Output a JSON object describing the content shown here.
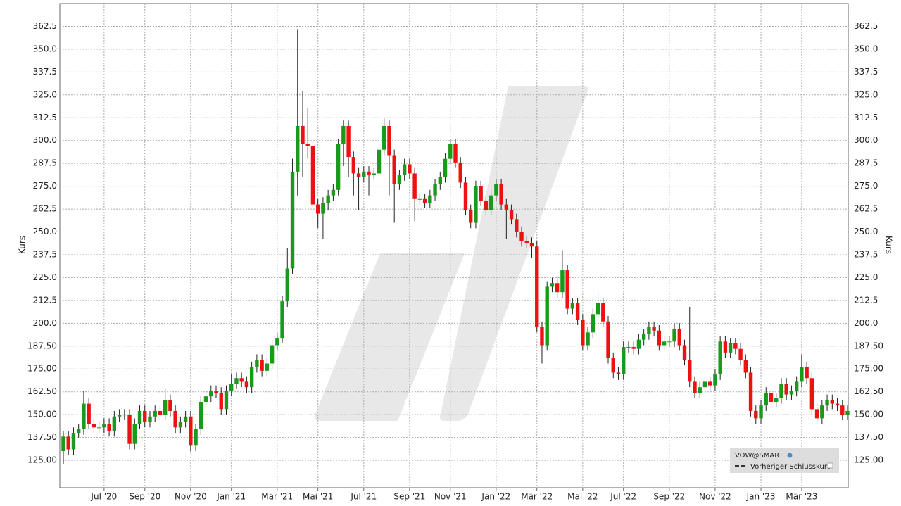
{
  "chart_data": {
    "type": "candlestick",
    "y_label": "Kurs",
    "series_name": "VOW@SMART",
    "reference_name": "Vorheriger Schlusskurs",
    "up_color": "#1a9a1a",
    "down_color": "#ee1111",
    "grid": true,
    "legend": "bottom-right",
    "ylim": [
      110,
      375
    ],
    "yticks": [
      {
        "value": 125,
        "label": "125.00"
      },
      {
        "value": 137.5,
        "label": "137.50"
      },
      {
        "value": 150,
        "label": "150.00"
      },
      {
        "value": 162.5,
        "label": "162.50"
      },
      {
        "value": 175,
        "label": "175.00"
      },
      {
        "value": 187.5,
        "label": "187.50"
      },
      {
        "value": 200,
        "label": "200.0"
      },
      212.5,
      {
        "value": 225,
        "label": "225.0"
      },
      237.5,
      {
        "value": 250,
        "label": "250.0"
      },
      262.5,
      {
        "value": 275,
        "label": "275.0"
      },
      287.5,
      {
        "value": 300,
        "label": "300.0"
      },
      312.5,
      {
        "value": 325,
        "label": "325.0"
      },
      337.5,
      {
        "value": 350,
        "label": "350.0"
      },
      362.5
    ],
    "categories": [
      null,
      null,
      null,
      null,
      null,
      null,
      null,
      null,
      "Jul '20",
      null,
      null,
      null,
      null,
      null,
      null,
      null,
      "Sep '20",
      null,
      null,
      null,
      null,
      null,
      null,
      null,
      null,
      "Nov '20",
      null,
      null,
      null,
      null,
      null,
      null,
      null,
      "Jan '21",
      null,
      null,
      null,
      null,
      null,
      null,
      null,
      null,
      "Mär '21",
      null,
      null,
      null,
      null,
      null,
      null,
      null,
      "Mai '21",
      null,
      null,
      null,
      null,
      null,
      null,
      null,
      null,
      "Jul '21",
      null,
      null,
      null,
      null,
      null,
      null,
      null,
      null,
      "Sep '21",
      null,
      null,
      null,
      null,
      null,
      null,
      null,
      "Nov '21",
      null,
      null,
      null,
      null,
      null,
      null,
      null,
      null,
      "Jan '22",
      null,
      null,
      null,
      null,
      null,
      null,
      null,
      "Mär '22",
      null,
      null,
      null,
      null,
      null,
      null,
      null,
      null,
      "Mai '22",
      null,
      null,
      null,
      null,
      null,
      null,
      null,
      "Jul '22",
      null,
      null,
      null,
      null,
      null,
      null,
      null,
      null,
      "Sep '22",
      null,
      null,
      null,
      null,
      null,
      null,
      null,
      null,
      "Nov '22",
      null,
      null,
      null,
      null,
      null,
      null,
      null,
      null,
      "Jan '23",
      null,
      null,
      null,
      null,
      null,
      null,
      null,
      "Mär '23",
      null,
      null,
      null,
      null,
      null,
      null,
      null,
      null,
      null
    ],
    "open": [
      130,
      138,
      131,
      140,
      142,
      156,
      145,
      143,
      143,
      145,
      141,
      149,
      150,
      150,
      134,
      145,
      152,
      146,
      149,
      152,
      150,
      158,
      152,
      143,
      146,
      149,
      133,
      142,
      157,
      160,
      163,
      162,
      153,
      163,
      167,
      170,
      168,
      165,
      176,
      180,
      174,
      178,
      188,
      192,
      212,
      230,
      283,
      308,
      298,
      297,
      265,
      260,
      266,
      270,
      273,
      298,
      308,
      291,
      282,
      280,
      283,
      281,
      282,
      295,
      308,
      292,
      276,
      281,
      287,
      282,
      268,
      268,
      266,
      270,
      276,
      280,
      290,
      298,
      288,
      277,
      262,
      255,
      275,
      267,
      262,
      270,
      276,
      265,
      262,
      257,
      250,
      245,
      244,
      242,
      198,
      188,
      220,
      222,
      217,
      229,
      208,
      211,
      202,
      188,
      195,
      205,
      211,
      201,
      181,
      173,
      172,
      187,
      187,
      186,
      191,
      194,
      198,
      196,
      188,
      190,
      190,
      197,
      188,
      180,
      168,
      162,
      165,
      168,
      166,
      172,
      190,
      184,
      189,
      186,
      180,
      173,
      152,
      148,
      155,
      162,
      157,
      159,
      167,
      161,
      163,
      168,
      176,
      170,
      153,
      148,
      155,
      158,
      156,
      155,
      150
    ],
    "high": [
      141,
      141,
      143,
      145,
      163,
      159,
      148,
      146,
      148,
      148,
      152,
      153,
      153,
      153,
      148,
      155,
      155,
      152,
      155,
      155,
      164,
      161,
      155,
      149,
      152,
      152,
      145,
      160,
      163,
      166,
      166,
      165,
      166,
      172,
      173,
      173,
      171,
      179,
      183,
      183,
      181,
      191,
      195,
      215,
      241,
      290,
      361,
      327,
      318,
      300,
      268,
      269,
      273,
      276,
      301,
      311,
      311,
      294,
      285,
      286,
      286,
      285,
      298,
      312,
      311,
      295,
      284,
      290,
      290,
      285,
      271,
      271,
      273,
      279,
      283,
      293,
      301,
      301,
      291,
      280,
      265,
      278,
      278,
      270,
      273,
      279,
      279,
      268,
      265,
      260,
      253,
      248,
      247,
      245,
      201,
      223,
      225,
      226,
      240,
      232,
      214,
      214,
      205,
      198,
      208,
      218,
      214,
      204,
      184,
      176,
      190,
      190,
      190,
      194,
      197,
      201,
      201,
      199,
      193,
      193,
      200,
      200,
      191,
      209,
      171,
      168,
      171,
      171,
      175,
      193,
      193,
      192,
      192,
      189,
      183,
      176,
      155,
      158,
      165,
      165,
      162,
      170,
      170,
      166,
      171,
      183,
      179,
      173,
      156,
      158,
      161,
      161,
      159,
      158,
      155
    ],
    "low": [
      123,
      128,
      128,
      137,
      139,
      142,
      140,
      140,
      140,
      138,
      138,
      146,
      147,
      131,
      131,
      142,
      143,
      143,
      146,
      147,
      147,
      149,
      140,
      140,
      143,
      130,
      130,
      139,
      154,
      157,
      159,
      150,
      150,
      160,
      164,
      165,
      162,
      162,
      173,
      171,
      171,
      175,
      185,
      189,
      209,
      227,
      270,
      280,
      290,
      255,
      252,
      246,
      262,
      267,
      270,
      286,
      280,
      270,
      262,
      277,
      270,
      279,
      279,
      292,
      270,
      255,
      273,
      278,
      279,
      256,
      265,
      263,
      263,
      267,
      273,
      277,
      287,
      285,
      274,
      259,
      252,
      252,
      264,
      259,
      259,
      267,
      262,
      246,
      254,
      247,
      242,
      241,
      236,
      195,
      178,
      185,
      217,
      214,
      214,
      205,
      205,
      199,
      185,
      185,
      192,
      202,
      198,
      178,
      170,
      169,
      169,
      184,
      183,
      183,
      188,
      191,
      193,
      185,
      185,
      187,
      187,
      185,
      177,
      165,
      159,
      159,
      162,
      163,
      163,
      169,
      181,
      181,
      183,
      177,
      170,
      149,
      145,
      145,
      152,
      154,
      154,
      156,
      158,
      158,
      160,
      165,
      167,
      150,
      145,
      145,
      152,
      153,
      152,
      147,
      147
    ],
    "close": [
      138,
      131,
      140,
      142,
      156,
      145,
      143,
      143,
      145,
      141,
      149,
      150,
      150,
      134,
      145,
      152,
      146,
      149,
      152,
      150,
      158,
      152,
      143,
      146,
      149,
      133,
      142,
      157,
      160,
      163,
      162,
      153,
      163,
      167,
      170,
      168,
      165,
      176,
      180,
      174,
      178,
      188,
      192,
      212,
      230,
      283,
      308,
      298,
      297,
      265,
      260,
      266,
      270,
      273,
      298,
      308,
      291,
      282,
      280,
      283,
      281,
      282,
      295,
      308,
      292,
      276,
      281,
      287,
      282,
      268,
      268,
      266,
      270,
      276,
      280,
      290,
      298,
      288,
      277,
      262,
      255,
      275,
      267,
      262,
      270,
      276,
      265,
      262,
      257,
      250,
      245,
      244,
      242,
      198,
      188,
      220,
      222,
      217,
      229,
      208,
      211,
      202,
      188,
      195,
      205,
      211,
      201,
      181,
      173,
      172,
      187,
      187,
      186,
      191,
      194,
      198,
      196,
      188,
      190,
      190,
      197,
      188,
      180,
      168,
      162,
      165,
      168,
      166,
      172,
      190,
      184,
      189,
      186,
      180,
      173,
      152,
      148,
      155,
      162,
      157,
      159,
      167,
      161,
      163,
      168,
      176,
      170,
      153,
      148,
      155,
      158,
      156,
      155,
      150,
      152
    ]
  }
}
